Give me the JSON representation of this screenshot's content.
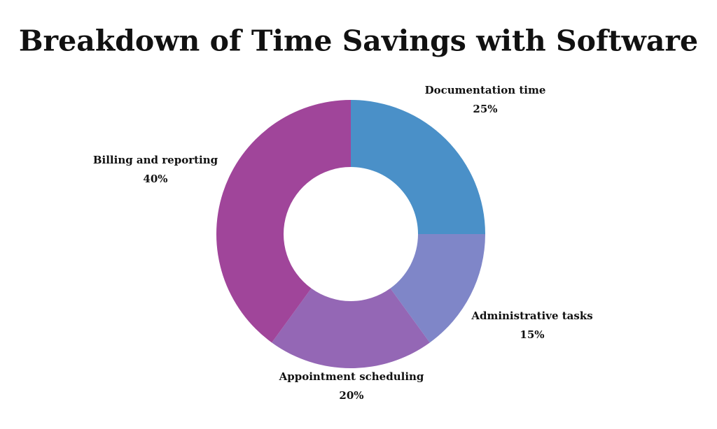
{
  "chart_data": {
    "type": "donut",
    "title": "Breakdown of Time Savings with Software",
    "categories": [
      "Documentation time",
      "Administrative tasks",
      "Appointment scheduling",
      "Billing and reporting"
    ],
    "values": [
      25,
      15,
      20,
      40
    ],
    "value_labels": [
      "25%",
      "15%",
      "20%",
      "40%"
    ],
    "colors": [
      "#4a90c8",
      "#7f86c8",
      "#9467b5",
      "#a0459a"
    ]
  }
}
